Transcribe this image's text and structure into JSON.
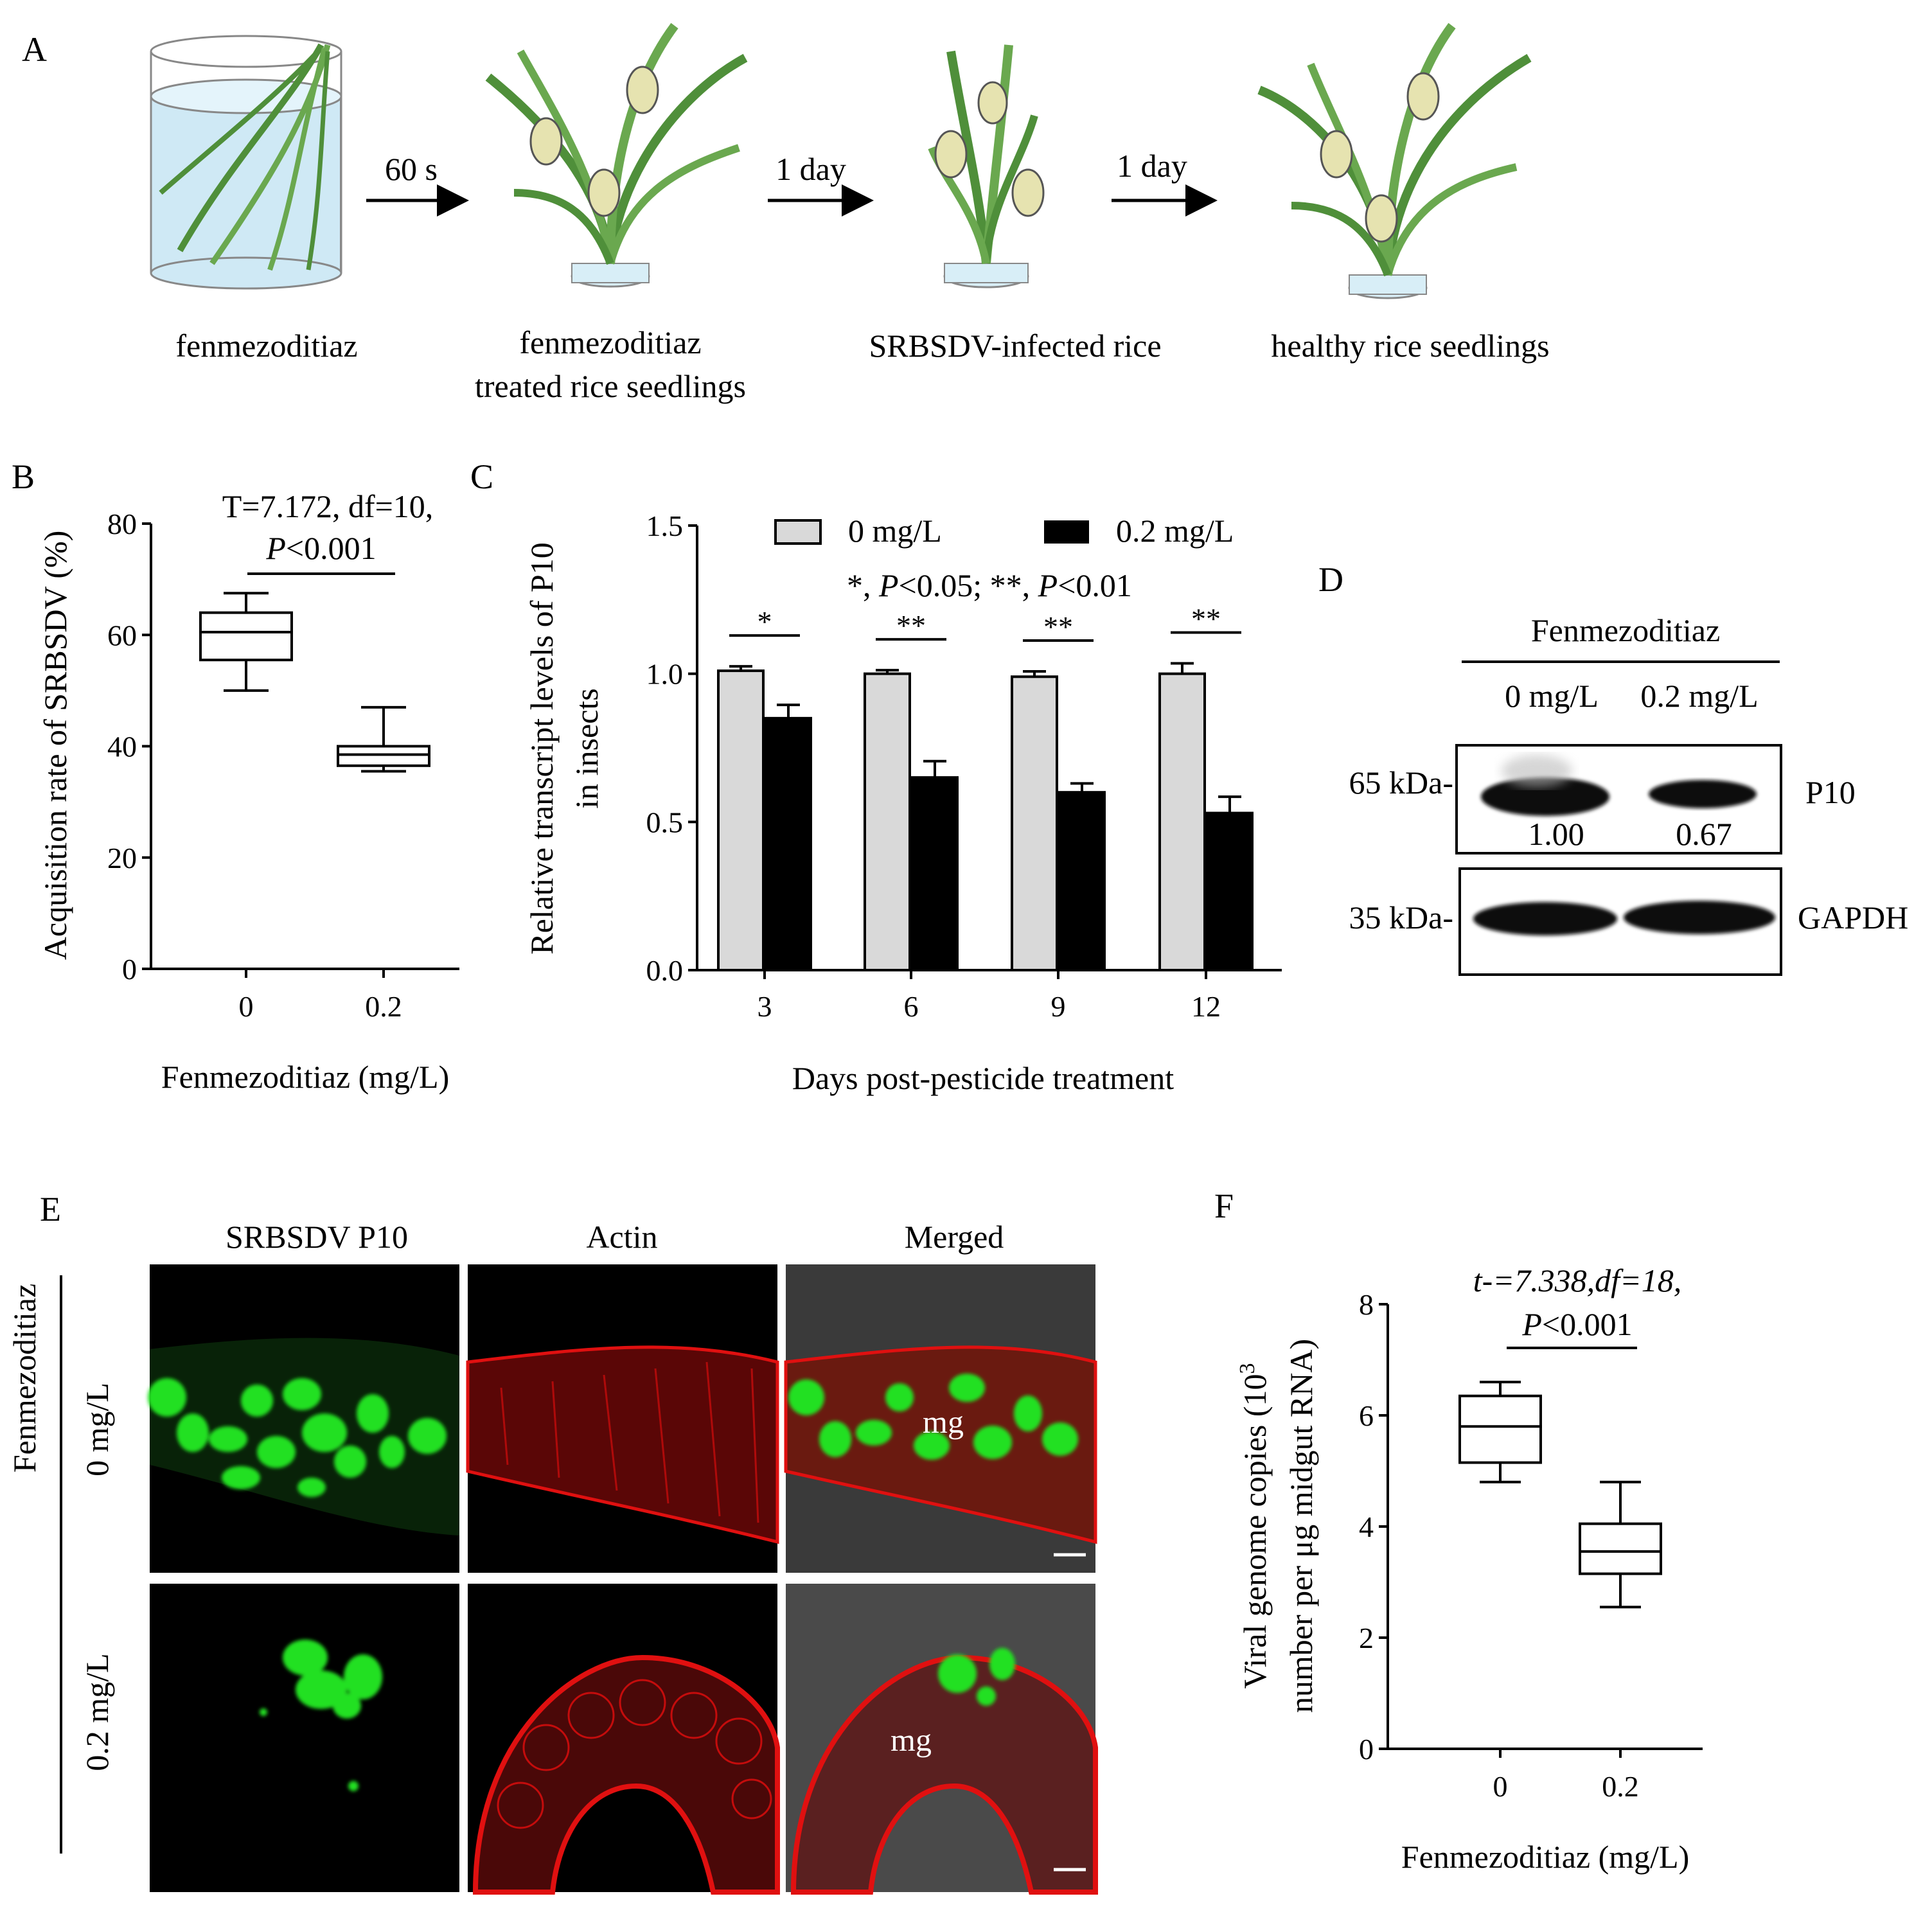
{
  "panels": {
    "A": {
      "letter": "A",
      "steps": [
        "fenmezoditiaz",
        "fenmezoditiaz",
        "treated rice seedlings",
        "SRBSDV-infected rice",
        "healthy rice seedlings"
      ],
      "arrows": [
        "60 s",
        "1 day",
        "1 day"
      ]
    },
    "B": {
      "letter": "B",
      "stat_line1": "T=7.172,  df=10,",
      "stat_p": "P",
      "stat_p_rest": "<0.001"
    },
    "C": {
      "letter": "C",
      "legend": [
        "0 mg/L",
        "0.2 mg/L"
      ],
      "sig_note": [
        "*, ",
        "P",
        "<0.05;  **, ",
        "P",
        "<0.01"
      ],
      "stars": [
        "*",
        "**",
        "**",
        "**"
      ]
    },
    "D": {
      "letter": "D",
      "treatment": "Fenmezoditiaz",
      "lanes": [
        "0 mg/L",
        "0.2 mg/L"
      ],
      "markers": [
        "65 kDa-",
        "35 kDa-"
      ],
      "bands": [
        "P10",
        "GAPDH"
      ],
      "quant": [
        "1.00",
        "0.67"
      ]
    },
    "E": {
      "letter": "E",
      "columns": [
        "SRBSDV P10",
        "Actin",
        "Merged"
      ],
      "rows": [
        "0 mg/L",
        "0.2 mg/L"
      ],
      "group": "Fenmezoditiaz",
      "tissue": "mg"
    },
    "F": {
      "letter": "F",
      "stat_line1": "t-=7.338,df=18,",
      "stat_p": "P",
      "stat_p_rest": "<0.001"
    }
  },
  "chart_data": [
    {
      "panel": "B",
      "type": "box",
      "categories": [
        "0",
        "0.2"
      ],
      "boxes": [
        {
          "min": 50,
          "q1": 55.5,
          "median": 60.5,
          "q3": 64,
          "max": 67.5
        },
        {
          "min": 35.5,
          "q1": 36.5,
          "median": 38.5,
          "q3": 40,
          "max": 47
        }
      ],
      "xlabel": "Fenmezoditiaz (mg/L)",
      "ylabel": "Acquisition rate of SRBSDV (%)",
      "ylim": [
        0,
        80
      ],
      "yticks": [
        "0",
        "20",
        "40",
        "60",
        "80"
      ]
    },
    {
      "panel": "C",
      "type": "bar",
      "categories": [
        "3",
        "6",
        "9",
        "12"
      ],
      "series": [
        {
          "name": "0 mg/L",
          "color": "#d9d9d9",
          "values": [
            1.01,
            1.0,
            0.99,
            1.0
          ],
          "errors": [
            0.015,
            0.012,
            0.018,
            0.035
          ]
        },
        {
          "name": "0.2 mg/L",
          "color": "#000000",
          "values": [
            0.85,
            0.65,
            0.6,
            0.53
          ],
          "errors": [
            0.045,
            0.055,
            0.03,
            0.055
          ]
        }
      ],
      "xlabel": "Days post-pesticide treatment",
      "ylabel": [
        "Relative transcript levels of P10",
        "in insects"
      ],
      "ylim": [
        0,
        1.5
      ],
      "yticks": [
        "0.0",
        "0.5",
        "1.0",
        "1.5"
      ]
    },
    {
      "panel": "F",
      "type": "box",
      "categories": [
        "0",
        "0.2"
      ],
      "boxes": [
        {
          "min": 4.8,
          "q1": 5.15,
          "median": 5.8,
          "q3": 6.35,
          "max": 6.6
        },
        {
          "min": 2.55,
          "q1": 3.15,
          "median": 3.55,
          "q3": 4.05,
          "max": 4.8
        }
      ],
      "xlabel": "Fenmezoditiaz (mg/L)",
      "ylabel": [
        "Viral genome copies (10",
        "3",
        "number per μg midgut RNA)"
      ],
      "ylim": [
        0,
        8
      ],
      "yticks": [
        "0",
        "2",
        "4",
        "6",
        "8"
      ]
    }
  ],
  "colors": {
    "bar_control": "#d9d9d9",
    "bar_treated": "#000000",
    "plant_green": "#6aa84f",
    "fluor_green": "#22e022",
    "actin_red": "#e01010"
  }
}
